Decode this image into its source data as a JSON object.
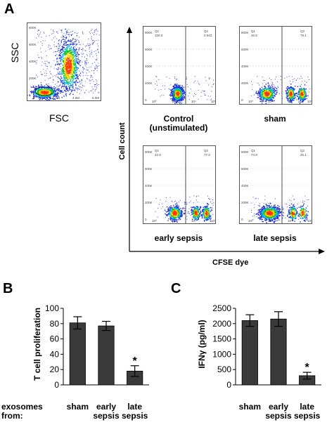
{
  "panel_labels": {
    "a": "A",
    "b": "B",
    "c": "C"
  },
  "gating": {
    "y_label": "SSC",
    "x_label": "FSC",
    "y_ticks": [
      "800K",
      "600K",
      "400K",
      "200K",
      "0"
    ],
    "x_ticks": [
      "0",
      "2.0M",
      "4.0M",
      "6.0M"
    ]
  },
  "flow_grid": {
    "y_axis_title": "Cell count",
    "x_axis_title": "CFSE dye",
    "plots": [
      {
        "id": "control",
        "label_lines": [
          "Control",
          "(unstimulated)"
        ],
        "q1_label": "Q1",
        "q1_value": "100.0",
        "q2_label": "Q2",
        "q2_value": "0.043"
      },
      {
        "id": "sham",
        "label_lines": [
          "sham"
        ],
        "q1_label": "Q1",
        "q1_value": "20.9",
        "q2_label": "Q2",
        "q2_value": "79.1"
      },
      {
        "id": "early",
        "label_lines": [
          "early sepsis"
        ],
        "q1_label": "Q1",
        "q1_value": "22.8",
        "q2_label": "Q2",
        "q2_value": "77.2"
      },
      {
        "id": "late",
        "label_lines": [
          "late sepsis"
        ],
        "q1_label": "Q1",
        "q1_value": "74.9",
        "q2_label": "Q2",
        "q2_value": "25.1"
      }
    ],
    "y_ticks": [
      "800K",
      "600K",
      "400K",
      "200K",
      "0"
    ],
    "x_ticks": [
      "10⁰",
      "10²",
      "10⁴",
      "10⁶"
    ]
  },
  "exosome_row_label": [
    "exosomes",
    "from:"
  ],
  "chart_data": [
    {
      "type": "bar",
      "panel": "B",
      "categories": [
        [
          "sham"
        ],
        [
          "early",
          "sepsis"
        ],
        [
          "late",
          "sepsis"
        ]
      ],
      "values": [
        81,
        77,
        18
      ],
      "errors": [
        8,
        6,
        7
      ],
      "significance": [
        "",
        "",
        "*"
      ],
      "ylabel": "T cell proliferation",
      "ylim": [
        0,
        100
      ],
      "yticks": [
        0,
        20,
        40,
        60,
        80,
        100
      ],
      "color": "#3a3a3a"
    },
    {
      "type": "bar",
      "panel": "C",
      "categories": [
        [
          "sham"
        ],
        [
          "early",
          "sepsis"
        ],
        [
          "late",
          "sepsis"
        ]
      ],
      "values": [
        2100,
        2150,
        300
      ],
      "errors": [
        190,
        240,
        110
      ],
      "significance": [
        "",
        "",
        "*"
      ],
      "ylabel": "IFNγ (pg/ml)",
      "ylim": [
        0,
        2500
      ],
      "yticks": [
        0,
        500,
        1000,
        1500,
        2000,
        2500
      ],
      "color": "#3a3a3a"
    }
  ]
}
